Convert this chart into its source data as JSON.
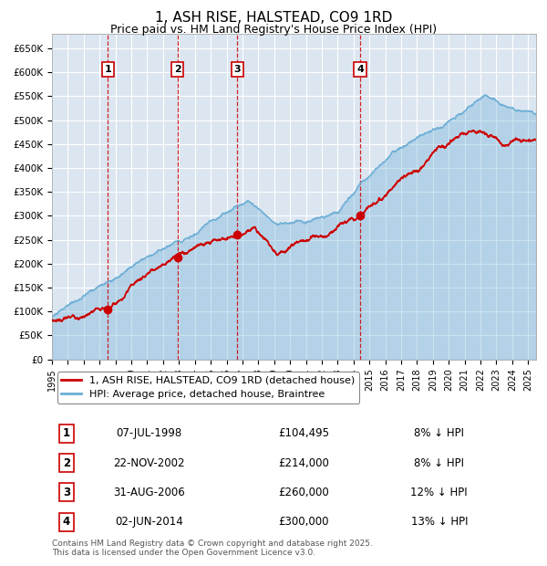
{
  "title": "1, ASH RISE, HALSTEAD, CO9 1RD",
  "subtitle": "Price paid vs. HM Land Registry's House Price Index (HPI)",
  "title_fontsize": 11,
  "subtitle_fontsize": 9,
  "background_color": "#ffffff",
  "plot_bg_color": "#dce6f1",
  "grid_color": "#ffffff",
  "ylim": [
    0,
    680000
  ],
  "yticks": [
    0,
    50000,
    100000,
    150000,
    200000,
    250000,
    300000,
    350000,
    400000,
    450000,
    500000,
    550000,
    600000,
    650000
  ],
  "ytick_labels": [
    "£0",
    "£50K",
    "£100K",
    "£150K",
    "£200K",
    "£250K",
    "£300K",
    "£350K",
    "£400K",
    "£450K",
    "£500K",
    "£550K",
    "£600K",
    "£650K"
  ],
  "hpi_color": "#6baed6",
  "price_color": "#cc0000",
  "sale_marker_color": "#cc0000",
  "vline_color": "#cc0000",
  "sale_dates_num": [
    1998.52,
    2002.9,
    2006.67,
    2014.42
  ],
  "sale_prices": [
    104495,
    214000,
    260000,
    300000
  ],
  "sale_labels": [
    "1",
    "2",
    "3",
    "4"
  ],
  "legend_entries": [
    "1, ASH RISE, HALSTEAD, CO9 1RD (detached house)",
    "HPI: Average price, detached house, Braintree"
  ],
  "table_data": [
    [
      "1",
      "07-JUL-1998",
      "£104,495",
      "8% ↓ HPI"
    ],
    [
      "2",
      "22-NOV-2002",
      "£214,000",
      "8% ↓ HPI"
    ],
    [
      "3",
      "31-AUG-2006",
      "£260,000",
      "12% ↓ HPI"
    ],
    [
      "4",
      "02-JUN-2014",
      "£300,000",
      "13% ↓ HPI"
    ]
  ],
  "footer_text": "Contains HM Land Registry data © Crown copyright and database right 2025.\nThis data is licensed under the Open Government Licence v3.0.",
  "xlim_start": 1995.0,
  "xlim_end": 2025.5
}
